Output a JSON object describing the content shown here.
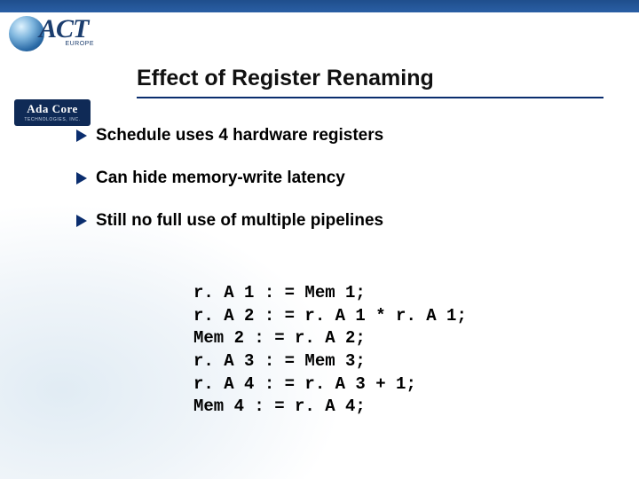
{
  "logos": {
    "act": {
      "text": "ACT",
      "subtext": "EUROPE"
    },
    "adacore": {
      "text": "Ada Core",
      "subtext": "TECHNOLOGIES, INC."
    }
  },
  "slide": {
    "title": "Effect of Register Renaming",
    "bullets": [
      "Schedule uses 4 hardware registers",
      "Can hide memory-write latency",
      "Still no full use of multiple pipelines"
    ],
    "code_lines": [
      "r. A 1 : = Mem 1;",
      "r. A 2 : = r. A 1 * r. A 1;",
      "Mem 2 : = r. A 2;",
      "r. A 3 : = Mem 3;",
      "r. A 4 : = r. A 3 + 1;",
      "Mem 4 : = r. A 4;"
    ]
  },
  "colors": {
    "top_bar": "#1f4e8c",
    "accent": "#0a2d6e",
    "background": "#ffffff"
  }
}
